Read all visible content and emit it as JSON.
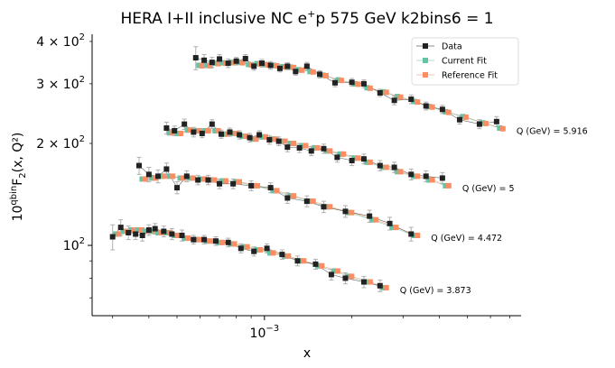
{
  "chart_data": {
    "type": "scatter",
    "title": "HERA I+II inclusive NC e$^+$p 575 GeV k2bins6 = 1",
    "xlabel": "x",
    "ylabel": "10^qbin F_2(x, Q^2)",
    "x_scale": "log",
    "y_scale": "log",
    "xlim": [
      0.000255,
      0.00765
    ],
    "ylim": [
      62,
      420
    ],
    "x_ticks": [
      {
        "value": 0.001,
        "base": "10",
        "exp": "−3"
      }
    ],
    "y_ticks": [
      {
        "value": 100,
        "mant": "",
        "base": "10",
        "exp": "2"
      },
      {
        "value": 200,
        "mant": "2 × ",
        "base": "10",
        "exp": "2"
      },
      {
        "value": 300,
        "mant": "3 × ",
        "base": "10",
        "exp": "2"
      },
      {
        "value": 400,
        "mant": "4 × ",
        "base": "10",
        "exp": "2"
      }
    ],
    "grid": false,
    "legend": {
      "placement": "top-right",
      "entries": [
        {
          "label": "Data",
          "color": "#222222"
        },
        {
          "label": "Current Fit",
          "color": "#66c2a5"
        },
        {
          "label": "Reference Fit",
          "color": "#fc8d62"
        }
      ]
    },
    "colors": {
      "data": "#222222",
      "current": "#66c2a5",
      "reference": "#fc8d62",
      "errorbar": "#b0b0b0"
    },
    "groups": [
      {
        "label": "Q (GeV) = 5.916",
        "x": [
          0.00058,
          0.00062,
          0.00066,
          0.0007,
          0.00075,
          0.0008,
          0.00086,
          0.00092,
          0.00098,
          0.00105,
          0.00113,
          0.0012,
          0.00128,
          0.0014,
          0.00155,
          0.00175,
          0.002,
          0.0022,
          0.0025,
          0.0028,
          0.0032,
          0.0036,
          0.0041,
          0.0047,
          0.0055,
          0.0063
        ],
        "data": [
          358,
          352,
          347,
          355,
          345,
          350,
          356,
          338,
          345,
          340,
          333,
          338,
          326,
          338,
          320,
          302,
          303,
          300,
          282,
          268,
          270,
          258,
          252,
          235,
          228,
          232
        ],
        "err": [
          28,
          14,
          12,
          11,
          10,
          9,
          10,
          9,
          9,
          9,
          8,
          8,
          8,
          9,
          8,
          8,
          8,
          8,
          7,
          8,
          8,
          7,
          7,
          7,
          7,
          8
        ],
        "current": [
          340,
          340,
          345,
          346,
          347,
          347,
          342,
          344,
          342,
          340,
          337,
          336,
          330,
          326,
          318,
          308,
          300,
          292,
          284,
          275,
          266,
          257,
          248,
          240,
          230,
          222
        ],
        "reference": [
          339,
          339,
          344,
          345,
          346,
          346,
          341,
          343,
          341,
          339,
          336,
          335,
          329,
          325,
          317,
          307,
          299,
          291,
          283,
          274,
          265,
          256,
          247,
          239,
          229,
          221
        ]
      },
      {
        "label": "Q (GeV) = 5",
        "x": [
          0.00046,
          0.00049,
          0.00053,
          0.00057,
          0.00061,
          0.00066,
          0.00071,
          0.00076,
          0.00082,
          0.00089,
          0.00096,
          0.00104,
          0.00112,
          0.0012,
          0.00132,
          0.00145,
          0.0016,
          0.00178,
          0.002,
          0.0022,
          0.0025,
          0.0028,
          0.0032,
          0.0036,
          0.0041
        ],
        "data": [
          222,
          218,
          228,
          216,
          214,
          228,
          213,
          216,
          212,
          208,
          212,
          205,
          203,
          195,
          194,
          190,
          193,
          182,
          178,
          180,
          172,
          170,
          162,
          160,
          158
        ],
        "err": [
          9,
          7,
          8,
          7,
          6,
          7,
          6,
          6,
          6,
          6,
          6,
          6,
          6,
          6,
          6,
          6,
          6,
          6,
          6,
          6,
          6,
          6,
          6,
          6,
          6
        ],
        "current": [
          215,
          214,
          219,
          218,
          218,
          218,
          213,
          214,
          210,
          206,
          209,
          206,
          203,
          200,
          197,
          194,
          190,
          186,
          181,
          176,
          170,
          165,
          160,
          156,
          150
        ],
        "reference": [
          215,
          214,
          219,
          218,
          218,
          218,
          213,
          214,
          210,
          206,
          209,
          206,
          203,
          200,
          197,
          194,
          190,
          186,
          181,
          176,
          170,
          165,
          160,
          156,
          150
        ]
      },
      {
        "label": "Q (GeV) = 4.472",
        "x": [
          0.00037,
          0.0004,
          0.00043,
          0.00046,
          0.0005,
          0.00054,
          0.00059,
          0.00064,
          0.0007,
          0.00078,
          0.0009,
          0.00105,
          0.0012,
          0.0014,
          0.0016,
          0.0019,
          0.0023,
          0.0027,
          0.0032
        ],
        "data": [
          172,
          162,
          160,
          168,
          148,
          160,
          156,
          156,
          152,
          152,
          150,
          148,
          138,
          135,
          130,
          126,
          122,
          116,
          108
        ],
        "err": [
          10,
          8,
          7,
          7,
          6,
          6,
          5,
          5,
          5,
          5,
          5,
          5,
          5,
          5,
          5,
          5,
          5,
          5,
          5
        ],
        "current": [
          157,
          158,
          160,
          160,
          158,
          158,
          157,
          156,
          155,
          154,
          150,
          145,
          140,
          135,
          130,
          125,
          119,
          113,
          107
        ],
        "reference": [
          157,
          158,
          160,
          160,
          158,
          158,
          157,
          156,
          155,
          154,
          150,
          145,
          140,
          135,
          130,
          125,
          119,
          113,
          107
        ]
      },
      {
        "label": "Q (GeV) = 3.873",
        "x": [
          0.0003,
          0.00032,
          0.00034,
          0.00036,
          0.00038,
          0.0004,
          0.00042,
          0.00045,
          0.00048,
          0.00052,
          0.00057,
          0.00062,
          0.00068,
          0.00075,
          0.00083,
          0.00092,
          0.00102,
          0.00115,
          0.0013,
          0.0015,
          0.0017,
          0.0019,
          0.0022,
          0.0025
        ],
        "data": [
          106,
          113,
          109,
          108,
          107,
          111,
          112,
          110,
          108,
          107,
          104,
          104,
          103,
          102,
          98,
          96,
          98,
          94,
          90,
          88,
          82,
          80,
          78,
          76
        ],
        "err": [
          9,
          6,
          5,
          4,
          4,
          4,
          4,
          4,
          4,
          4,
          3,
          3,
          3,
          3,
          3,
          3,
          3,
          3,
          3,
          3,
          3,
          3,
          3,
          3
        ],
        "current": [
          108,
          110,
          111,
          111,
          110,
          110,
          109,
          109,
          107,
          105,
          104,
          103,
          102,
          101,
          99,
          97,
          95,
          93,
          90,
          87,
          84,
          81,
          78,
          75
        ],
        "reference": [
          108,
          110,
          111,
          111,
          110,
          110,
          109,
          109,
          107,
          105,
          104,
          103,
          102,
          101,
          99,
          97,
          95,
          93,
          90,
          87,
          84,
          81,
          78,
          75
        ]
      }
    ]
  }
}
